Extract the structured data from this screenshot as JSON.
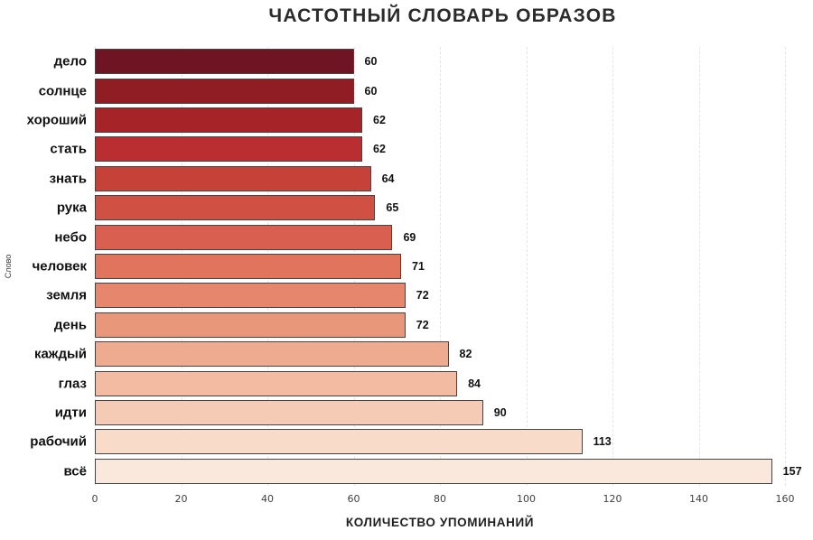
{
  "chart_data": {
    "type": "bar",
    "orientation": "horizontal",
    "title": "ЧАСТОТНЫЙ СЛОВАРЬ ОБРАЗОВ",
    "xlabel": "КОЛИЧЕСТВО УПОМИНАНИЙ",
    "ylabel": "Слово",
    "categories": [
      "дело",
      "солнце",
      "хороший",
      "стать",
      "знать",
      "рука",
      "небо",
      "человек",
      "земля",
      "день",
      "каждый",
      "глаз",
      "идти",
      "рабочий",
      "всё"
    ],
    "values": [
      60,
      60,
      62,
      62,
      64,
      65,
      69,
      71,
      72,
      72,
      82,
      84,
      90,
      113,
      157
    ],
    "value_labels_shown": true,
    "bar_colors": [
      "#6e1423",
      "#901c24",
      "#a62328",
      "#ba2d30",
      "#c64137",
      "#d05044",
      "#d96050",
      "#e1745d",
      "#e5866d",
      "#e9977b",
      "#eeab90",
      "#f2bba2",
      "#f5cbb6",
      "#f8dbc9",
      "#fae8dc"
    ],
    "bar_edge_color": "#454545",
    "xticks": [
      0,
      20,
      40,
      60,
      80,
      100,
      120,
      140,
      160
    ],
    "xlim": [
      0,
      160
    ],
    "grid": "vertical-dashed",
    "gridline_color": "#e4e4e4",
    "background_color": "#ffffff",
    "legend": "none"
  }
}
